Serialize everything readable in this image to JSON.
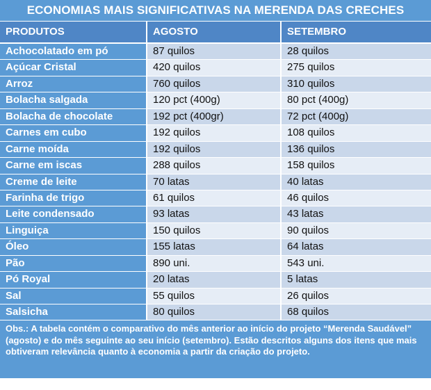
{
  "title": "ECONOMIAS MAIS SIGNIFICATIVAS NA MERENDA DAS CRECHES",
  "columns": [
    "PRODUTOS",
    "AGOSTO",
    "SETEMBRO"
  ],
  "rows": [
    {
      "produto": "Achocolatado em pó",
      "agosto": "87 quilos",
      "setembro": "28 quilos"
    },
    {
      "produto": "Açúcar Cristal",
      "agosto": "420 quilos",
      "setembro": "275 quilos"
    },
    {
      "produto": "Arroz",
      "agosto": "760 quilos",
      "setembro": "310 quilos"
    },
    {
      "produto": "Bolacha salgada",
      "agosto": "120 pct (400g)",
      "setembro": "80 pct (400g)"
    },
    {
      "produto": "Bolacha de chocolate",
      "agosto": "192 pct (400gr)",
      "setembro": "72 pct (400g)"
    },
    {
      "produto": "Carnes em cubo",
      "agosto": "192 quilos",
      "setembro": "108 quilos"
    },
    {
      "produto": "Carne moída",
      "agosto": "192 quilos",
      "setembro": "136 quilos"
    },
    {
      "produto": "Carne em iscas",
      "agosto": "288 quilos",
      "setembro": "158 quilos"
    },
    {
      "produto": "Creme de leite",
      "agosto": "70 latas",
      "setembro": "40 latas"
    },
    {
      "produto": "Farinha de trigo",
      "agosto": "61 quilos",
      "setembro": "46 quilos"
    },
    {
      "produto": "Leite condensado",
      "agosto": "93 latas",
      "setembro": "43 latas"
    },
    {
      "produto": "Linguiça",
      "agosto": "150 quilos",
      "setembro": "90 quilos"
    },
    {
      "produto": "Óleo",
      "agosto": "155 latas",
      "setembro": "64 latas"
    },
    {
      "produto": "Pão",
      "agosto": "890 uni.",
      "setembro": "543 uni."
    },
    {
      "produto": "Pó Royal",
      "agosto": "20 latas",
      "setembro": "5 latas"
    },
    {
      "produto": "Sal",
      "agosto": "55 quilos",
      "setembro": "26 quilos"
    },
    {
      "produto": "Salsicha",
      "agosto": "80 quilos",
      "setembro": "68 quilos"
    }
  ],
  "note": "Obs.: A tabela contém o comparativo do mês anterior ao início do projeto “Merenda Saudável” (agosto) e do mês seguinte ao seu início (setembro). Estão descritos alguns dos itens que mais obtiveram relevância quanto à economia a partir da criação do projeto.",
  "colors": {
    "title_bg": "#5b9bd5",
    "header_bg": "#4f86c6",
    "product_bg": "#5b9bd5",
    "band_a": "#c9d7ea",
    "band_b": "#e6edf6"
  }
}
